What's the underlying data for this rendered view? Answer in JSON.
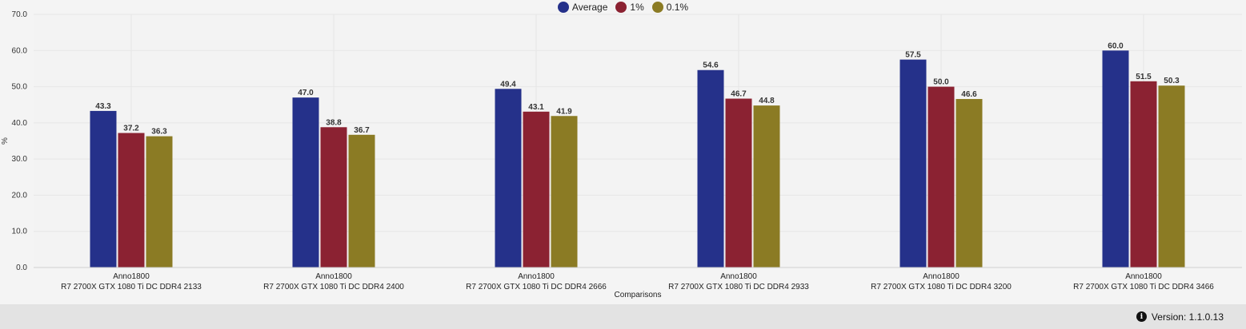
{
  "chart_data": {
    "type": "bar",
    "ylabel": "%",
    "xlabel": "Comparisons",
    "ylim": [
      0,
      70
    ],
    "yticks": [
      0,
      10,
      20,
      30,
      40,
      50,
      60,
      70
    ],
    "ytick_labels": [
      "0.0",
      "10.0",
      "20.0",
      "30.0",
      "40.0",
      "50.0",
      "60.0",
      "70.0"
    ],
    "categories": [
      {
        "line1": "Anno1800",
        "line2": "R7 2700X GTX 1080 Ti DC DDR4 2133"
      },
      {
        "line1": "Anno1800",
        "line2": "R7 2700X GTX 1080 Ti DC DDR4 2400"
      },
      {
        "line1": "Anno1800",
        "line2": "R7 2700X GTX 1080 Ti DC DDR4 2666"
      },
      {
        "line1": "Anno1800",
        "line2": "R7 2700X GTX 1080 Ti DC DDR4 2933"
      },
      {
        "line1": "Anno1800",
        "line2": "R7 2700X GTX 1080 Ti DC DDR4 3200"
      },
      {
        "line1": "Anno1800",
        "line2": "R7 2700X GTX 1080 Ti DC DDR4 3466"
      }
    ],
    "series": [
      {
        "name": "Average",
        "color": "#25318a",
        "values": [
          43.3,
          47.0,
          49.4,
          54.6,
          57.5,
          60.0
        ]
      },
      {
        "name": "1%",
        "color": "#8b2232",
        "values": [
          37.2,
          38.8,
          43.1,
          46.7,
          50.0,
          51.5
        ]
      },
      {
        "name": "0.1%",
        "color": "#8b7b24",
        "values": [
          36.3,
          36.7,
          41.9,
          44.8,
          46.6,
          50.3
        ]
      }
    ],
    "legend_position": "top-center",
    "grid": true
  },
  "footer": {
    "version_label": "Version: 1.1.0.13",
    "info_icon": "info-icon"
  }
}
